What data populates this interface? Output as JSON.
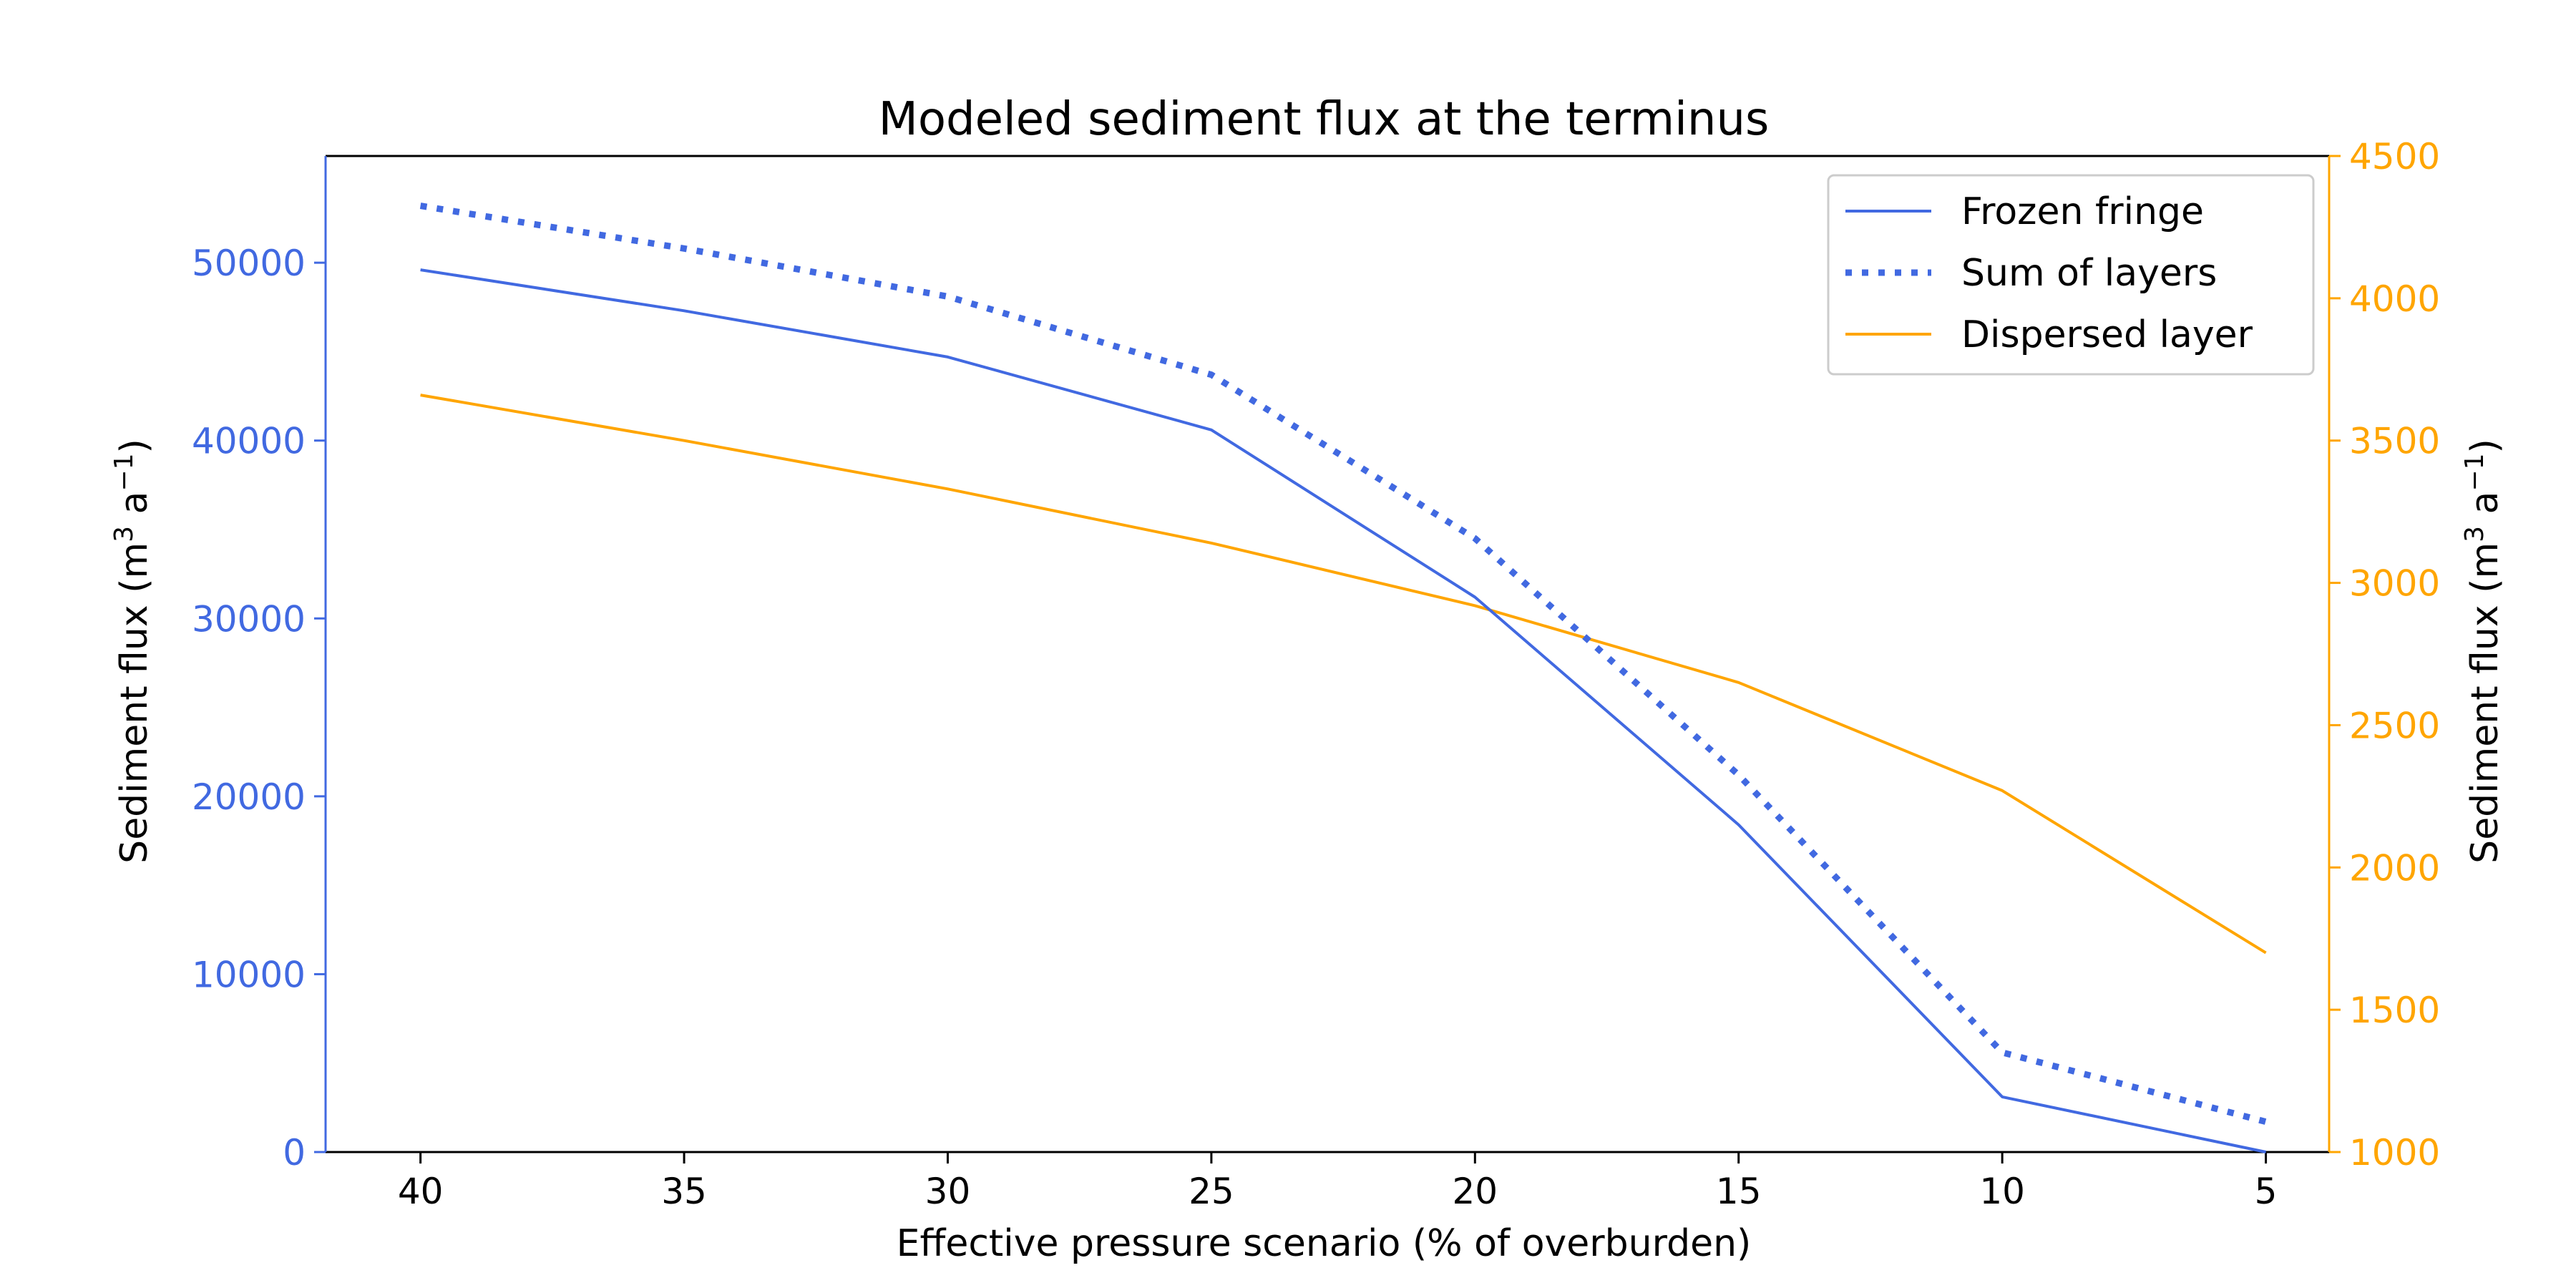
{
  "chart_data": {
    "type": "line",
    "title": "Modeled sediment flux at the terminus",
    "xlabel": "Effective pressure scenario (% of overburden)",
    "ylabel_left": "Sediment flux (m",
    "ylabel_right": "Sediment flux (m",
    "x": [
      40,
      35,
      30,
      25,
      20,
      15,
      10,
      5
    ],
    "x_ticks": [
      "40",
      "35",
      "30",
      "25",
      "20",
      "15",
      "10",
      "5"
    ],
    "x_reversed": true,
    "xlim": [
      41.8,
      3.8
    ],
    "ylim_left": [
      0,
      56000
    ],
    "ylim_right": [
      1000,
      4500
    ],
    "y_ticks_left": [
      "0",
      "10000",
      "20000",
      "30000",
      "40000",
      "50000"
    ],
    "y_ticks_right": [
      "1000",
      "1500",
      "2000",
      "2500",
      "3000",
      "3500",
      "4000",
      "4500"
    ],
    "grid": false,
    "legend_position": "top-right",
    "colors": {
      "left_axis": "#4169e1",
      "right_axis": "#ffa500",
      "frozen_fringe": "#4169e1",
      "sum_of_layers": "#4169e1",
      "dispersed_layer": "#ffa500"
    },
    "series": [
      {
        "name": "Frozen fringe",
        "axis": "left",
        "style": "solid",
        "values": [
          49600,
          47300,
          44700,
          40600,
          31200,
          18400,
          3100,
          0
        ]
      },
      {
        "name": "Sum of layers",
        "axis": "left",
        "style": "dotted",
        "values": [
          53200,
          50800,
          48100,
          43700,
          34500,
          21200,
          5600,
          1700
        ]
      },
      {
        "name": "Dispersed layer",
        "axis": "right",
        "style": "solid",
        "values": [
          3660,
          3500,
          3330,
          3140,
          2920,
          2650,
          2270,
          1700
        ]
      }
    ]
  }
}
